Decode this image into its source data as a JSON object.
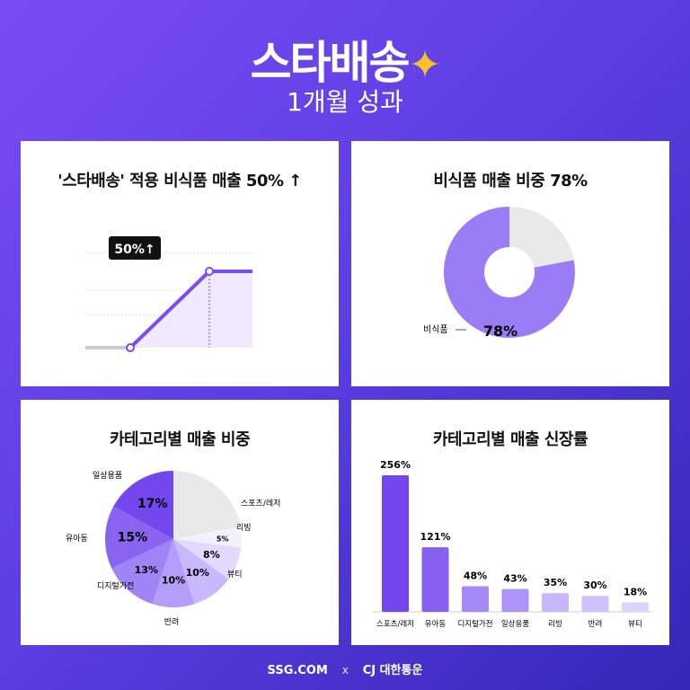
{
  "header": {
    "logo": "스타배송",
    "subtitle": "1개월 성과"
  },
  "colors": {
    "accent": "#7a4cf5",
    "gold": "#f6c12b"
  },
  "chart_data": [
    {
      "type": "line",
      "title": "'스타배송' 적용 비식품 매출 50% ↑",
      "annotation": "50%↑",
      "series": [
        {
          "values": [
            100,
            100,
            150,
            150
          ]
        }
      ]
    },
    {
      "type": "pie",
      "title": "비식품 매출 비중 78%",
      "slices": [
        {
          "label": "비식품",
          "value": 78,
          "data_label": "78%"
        },
        {
          "label": "",
          "value": 22
        }
      ]
    },
    {
      "type": "pie",
      "title": "카테고리별 매출 비중",
      "slices": [
        {
          "label": "",
          "value": 22
        },
        {
          "label": "스포츠/레저",
          "value": 5,
          "data_label": "5%"
        },
        {
          "label": "리빙",
          "value": 8,
          "data_label": "8%"
        },
        {
          "label": "뷰티",
          "value": 10,
          "data_label": "10%"
        },
        {
          "label": "반려",
          "value": 10,
          "data_label": "10%"
        },
        {
          "label": "디지털가전",
          "value": 13,
          "data_label": "13%"
        },
        {
          "label": "유아동",
          "value": 15,
          "data_label": "15%"
        },
        {
          "label": "일상용품",
          "value": 17,
          "data_label": "17%"
        }
      ]
    },
    {
      "type": "bar",
      "title": "카테고리별 매출 신장률",
      "categories": [
        "스포츠/레저",
        "유아동",
        "디지털가전",
        "일상용품",
        "리빙",
        "반려",
        "뷰티"
      ],
      "values": [
        256,
        121,
        48,
        43,
        35,
        30,
        18
      ],
      "data_labels": [
        "256%",
        "121%",
        "48%",
        "43%",
        "35%",
        "30%",
        "18%"
      ]
    }
  ],
  "footer": {
    "left": "SSG.COM",
    "sep": "X",
    "right": "CJ 대한통운"
  }
}
